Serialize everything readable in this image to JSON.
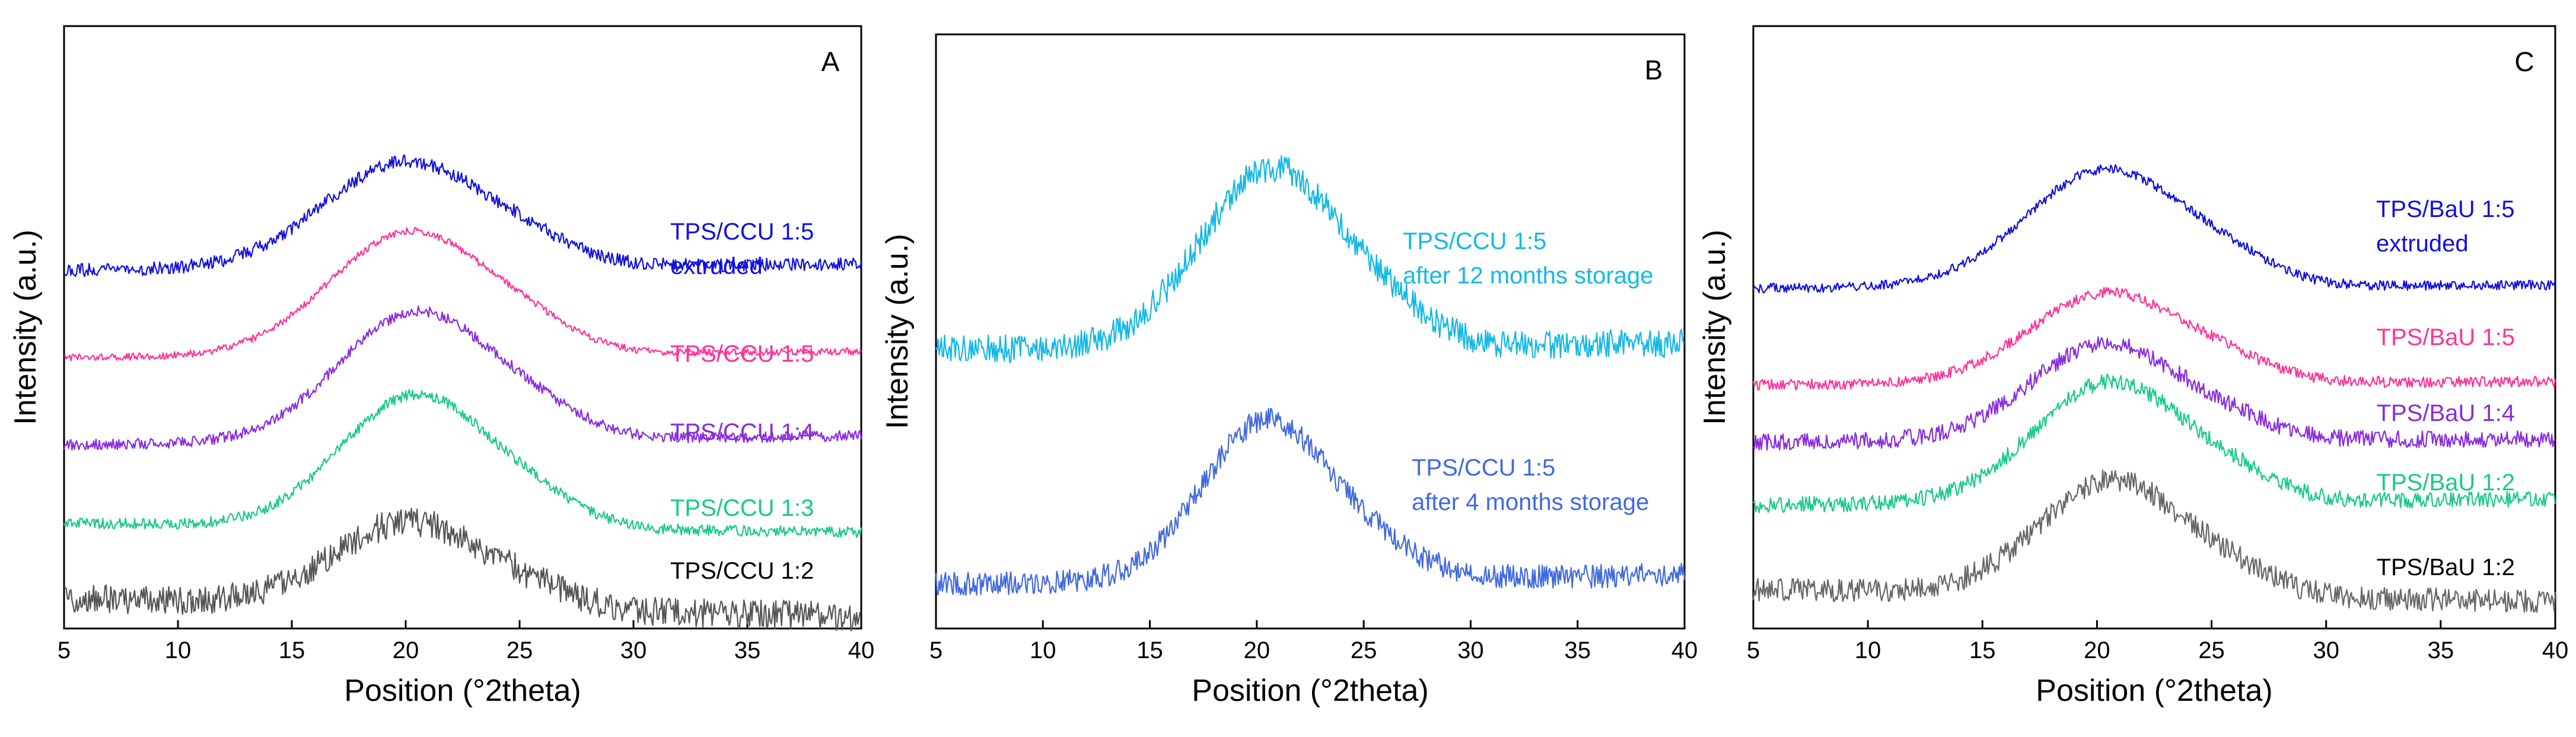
{
  "chart_data": [
    {
      "type": "line",
      "panel_label": "A",
      "xlabel": "Position (°2theta)",
      "ylabel": "Intensity (a.u.)",
      "xlim": [
        5,
        40
      ],
      "ylim": [
        0,
        100
      ],
      "x_ticks": [
        5,
        10,
        15,
        20,
        25,
        30,
        35,
        40
      ],
      "y_ticks_shown": false,
      "series": [
        {
          "name": "TPS/CCU 1:2",
          "label_lines": [
            "TPS/CCU 1:2"
          ],
          "color": "#555555",
          "label_color": "#000000",
          "baseline": 5,
          "peak": 14,
          "center": 20.2,
          "width": 3.3,
          "end_drop": 3,
          "noise": 2.4
        },
        {
          "name": "TPS/CCU 1:3",
          "label_lines": [
            "TPS/CCU 1:3"
          ],
          "color": "#1ac98a",
          "label_color": "#1ac98a",
          "baseline": 17.5,
          "peak": 22,
          "center": 20.5,
          "width": 3.3,
          "end_drop": 1.5,
          "noise": 0.9
        },
        {
          "name": "TPS/CCU 1:4",
          "label_lines": [
            "TPS/CCU 1:4"
          ],
          "color": "#8a2be2",
          "label_color": "#8a2be2",
          "baseline": 30.5,
          "peak": 21.5,
          "center": 20.5,
          "width": 3.4,
          "end_drop": -1.5,
          "noise": 0.9
        },
        {
          "name": "TPS/CCU 1:5",
          "label_lines": [
            "TPS/CCU 1:5"
          ],
          "color": "#ff3399",
          "label_color": "#ff3399",
          "baseline": 45,
          "peak": 20.5,
          "center": 20.2,
          "width": 3.5,
          "end_drop": -1.0,
          "noise": 0.6
        },
        {
          "name": "TPS/CCU 1:5 extruded",
          "label_lines": [
            "TPS/CCU 1:5",
            "extruded"
          ],
          "color": "#1010e0",
          "label_color": "#1010e0",
          "baseline": 59.5,
          "peak": 17.5,
          "center": 20.0,
          "width": 3.6,
          "end_drop": -1.0,
          "noise": 1.1
        }
      ]
    },
    {
      "type": "line",
      "panel_label": "B",
      "xlabel": "Position (°2theta)",
      "ylabel": "Intensity (a.u.)",
      "xlim": [
        5,
        40
      ],
      "ylim": [
        0,
        100
      ],
      "x_ticks": [
        5,
        10,
        15,
        20,
        25,
        30,
        35,
        40
      ],
      "y_ticks_shown": false,
      "series": [
        {
          "name": "TPS/CCU 1:5 after 4 months storage",
          "label_lines": [
            "TPS/CCU 1:5",
            "after 4 months storage"
          ],
          "color": "#4169e1",
          "label_color": "#4169e1",
          "baseline": 7.5,
          "peak": 27,
          "center": 20.5,
          "width": 3.0,
          "end_drop": -1.5,
          "noise": 2.0
        },
        {
          "name": "TPS/CCU 1:5 after 12 months storage",
          "label_lines": [
            "TPS/CCU 1:5",
            "after 12 months storage"
          ],
          "color": "#14b8e6",
          "label_color": "#14b8e6",
          "baseline": 47,
          "peak": 30,
          "center": 20.7,
          "width": 3.3,
          "end_drop": -1.0,
          "noise": 2.4
        }
      ]
    },
    {
      "type": "line",
      "panel_label": "C",
      "xlabel": "Position (°2theta)",
      "ylabel": "Intensity (a.u.)",
      "xlim": [
        5,
        40
      ],
      "ylim": [
        0,
        100
      ],
      "x_ticks": [
        5,
        10,
        15,
        20,
        25,
        30,
        35,
        40
      ],
      "y_ticks_shown": false,
      "series": [
        {
          "name": "TPS/BaU 1:2",
          "label_lines": [
            "TPS/BaU 1:2"
          ],
          "color": "#666666",
          "label_color": "#000000",
          "baseline": 6.5,
          "peak": 19,
          "center": 20.7,
          "width": 3.2,
          "end_drop": 2,
          "noise": 1.9
        },
        {
          "name": "TPS/BaU 1:2 (green)",
          "label_lines": [
            "TPS/BaU 1:2"
          ],
          "color": "#1ac98a",
          "label_color": "#1ac98a",
          "baseline": 20.5,
          "peak": 20,
          "center": 20.6,
          "width": 3.3,
          "end_drop": -1.0,
          "noise": 1.3
        },
        {
          "name": "TPS/BaU 1:4",
          "label_lines": [
            "TPS/BaU 1:4"
          ],
          "color": "#8a2be2",
          "label_color": "#8a2be2",
          "baseline": 31,
          "peak": 16,
          "center": 20.4,
          "width": 3.3,
          "end_drop": -0.5,
          "noise": 1.4
        },
        {
          "name": "TPS/BaU 1:5",
          "label_lines": [
            "TPS/BaU 1:5"
          ],
          "color": "#ff3399",
          "label_color": "#ff3399",
          "baseline": 40.5,
          "peak": 15,
          "center": 20.5,
          "width": 3.4,
          "end_drop": -0.5,
          "noise": 0.9
        },
        {
          "name": "TPS/BaU 1:5 extruded",
          "label_lines": [
            "TPS/BaU 1:5",
            "extruded"
          ],
          "color": "#1010e0",
          "label_color": "#1010e0",
          "baseline": 56.5,
          "peak": 19.5,
          "center": 20.4,
          "width": 3.5,
          "end_drop": -0.5,
          "noise": 0.8
        }
      ]
    }
  ]
}
